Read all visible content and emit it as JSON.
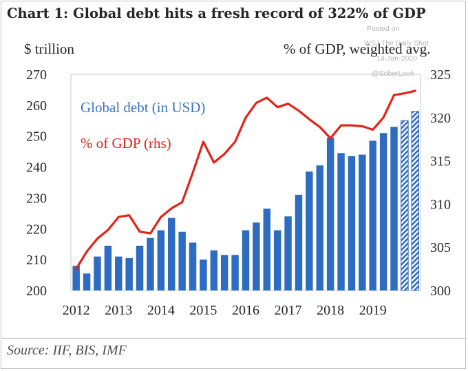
{
  "title": "Chart 1: Global debt hits a fresh record of 322% of GDP",
  "left_axis_unit": "$ trillion",
  "right_axis_unit": "% of GDP, weighted avg.",
  "watermark": {
    "line1": "Posted on",
    "line2": "WSJ The Daily Shot",
    "line3": "14-Jan-2020",
    "line4": "@SoberLook"
  },
  "source": "Source: IIF, BIS, IMF",
  "colors": {
    "bar": "#2e6cc1",
    "line": "#e2231a",
    "label_bar": "#3a74c4",
    "label_line": "#e2231a",
    "text": "#262626"
  },
  "chart_data": {
    "type": "bar+line",
    "xlabels": [
      "2012",
      "2013",
      "2014",
      "2015",
      "2016",
      "2017",
      "2018",
      "2019"
    ],
    "quarters": [
      "2012Q1",
      "2012Q2",
      "2012Q3",
      "2012Q4",
      "2013Q1",
      "2013Q2",
      "2013Q3",
      "2013Q4",
      "2014Q1",
      "2014Q2",
      "2014Q3",
      "2014Q4",
      "2015Q1",
      "2015Q2",
      "2015Q3",
      "2015Q4",
      "2016Q1",
      "2016Q2",
      "2016Q3",
      "2016Q4",
      "2017Q1",
      "2017Q2",
      "2017Q3",
      "2017Q4",
      "2018Q1",
      "2018Q2",
      "2018Q3",
      "2018Q4",
      "2019Q1",
      "2019Q2",
      "2019Q3",
      "2019Q4",
      "2020Q1"
    ],
    "series": [
      {
        "name": "Global debt (in USD)",
        "axis": "left",
        "kind": "bar",
        "values": [
          208,
          205.5,
          211,
          214.5,
          211,
          210.5,
          214.5,
          217,
          219.5,
          223.5,
          219,
          215.5,
          210,
          213,
          211.5,
          211.5,
          219.5,
          222,
          226.5,
          219.5,
          224,
          231,
          238.5,
          240.5,
          249.5,
          244.5,
          243.5,
          244,
          248.5,
          251,
          253,
          255,
          258
        ],
        "estimated_from_index": 31
      },
      {
        "name": "% of GDP (rhs)",
        "axis": "right",
        "kind": "line",
        "values": [
          302.5,
          304.5,
          306,
          307,
          308.5,
          308.7,
          306.8,
          306.6,
          308.5,
          309.5,
          310.2,
          313.6,
          317.2,
          314.8,
          315.8,
          317.2,
          320,
          321.7,
          322.3,
          321.2,
          321.6,
          320.8,
          319.8,
          318.9,
          317.6,
          319.1,
          319.1,
          319.0,
          318.6,
          320,
          322.6,
          322.8,
          323.1
        ]
      }
    ],
    "left_axis": {
      "min": 200,
      "max": 270,
      "ticks": [
        "200",
        "210",
        "220",
        "230",
        "240",
        "250",
        "260",
        "270"
      ]
    },
    "right_axis": {
      "min": 300,
      "max": 325,
      "ticks": [
        "300",
        "305",
        "310",
        "315",
        "320",
        "325"
      ]
    },
    "legend": {
      "bar_label": "Global debt (in USD)",
      "line_label": "% of GDP (rhs)"
    }
  }
}
